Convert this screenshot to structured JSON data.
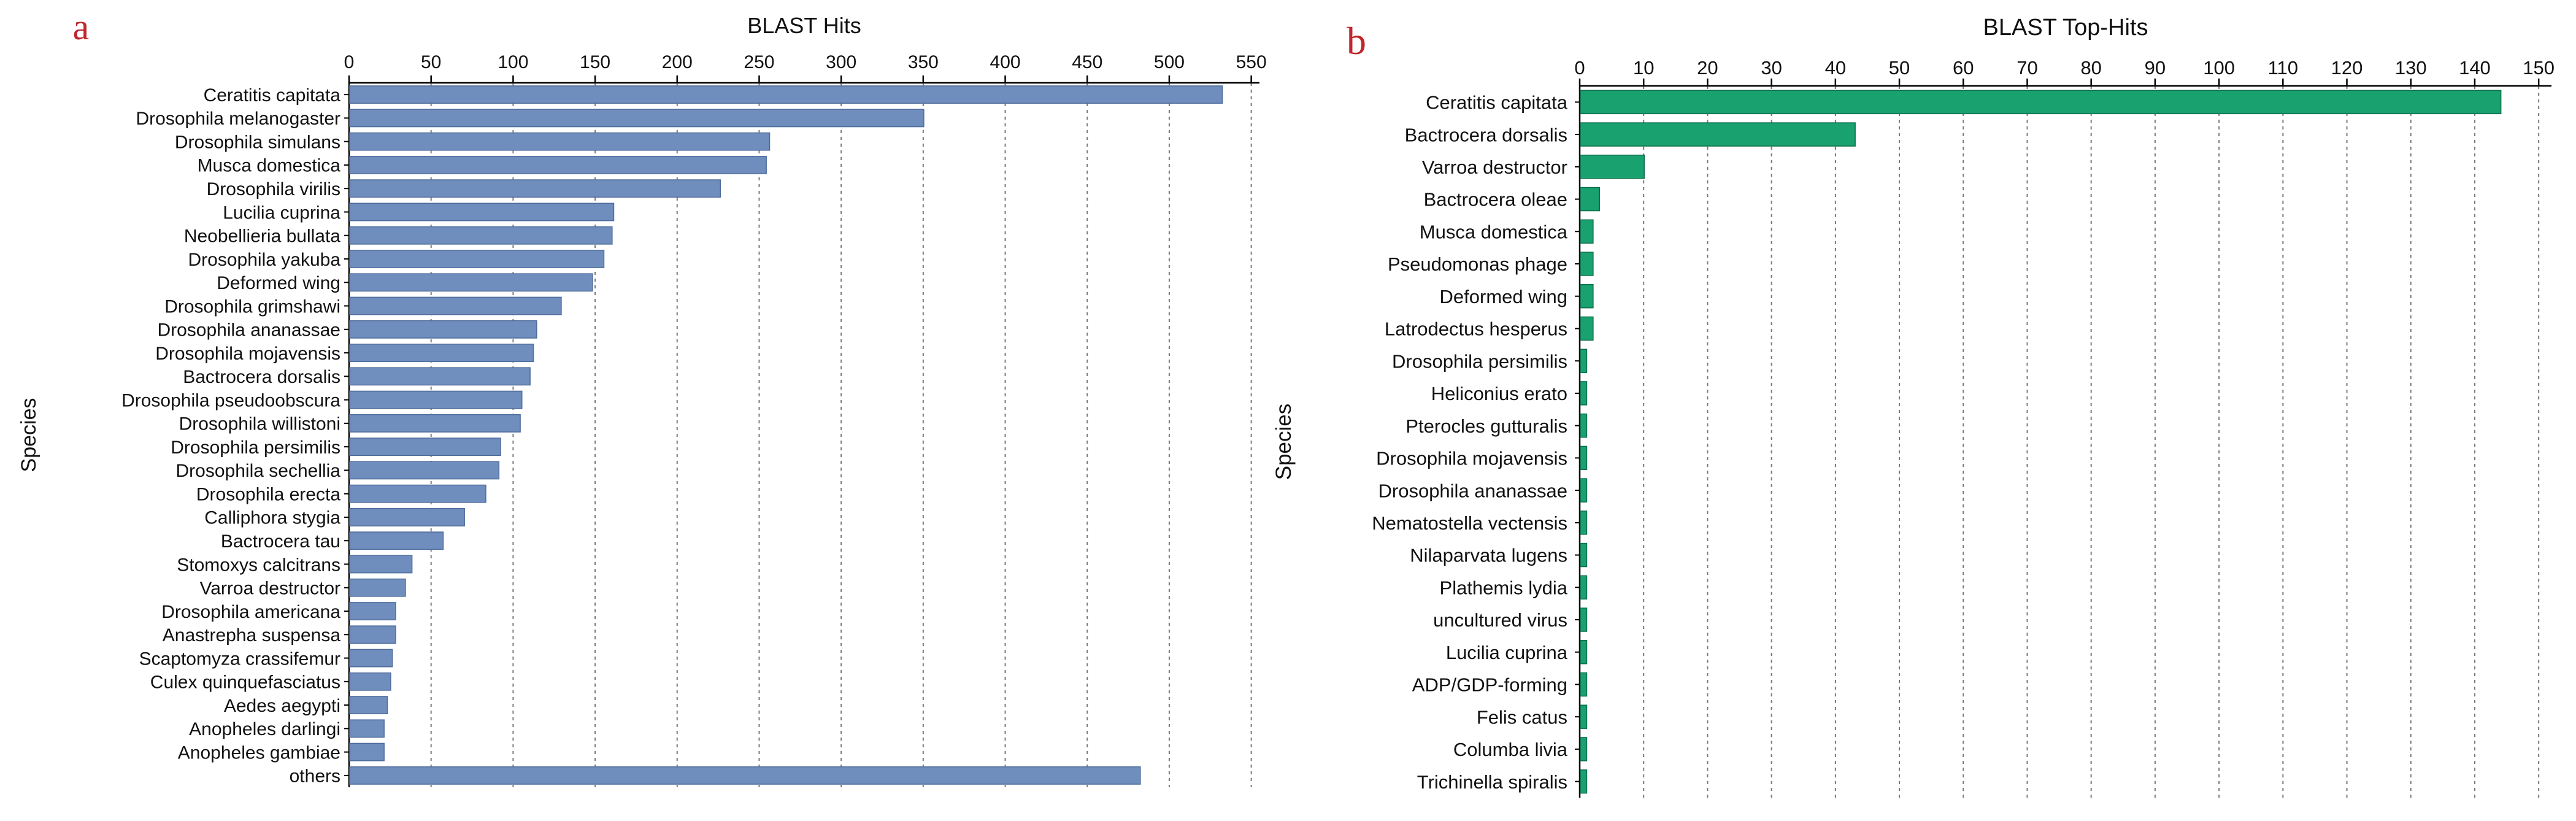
{
  "colors": {
    "panel_letter": "#c0262d",
    "bar_a": "#6f8dbd",
    "bar_a_edge": "#4f6d9c",
    "bar_b": "#19a170",
    "bar_b_edge": "#0d6f4b",
    "grid": "#7a7a7a",
    "axis": "#000000",
    "text": "#111111"
  },
  "chart_data": [
    {
      "type": "bar",
      "orientation": "horizontal",
      "panel_label": "a",
      "title": "BLAST Hits",
      "xlabel": "",
      "ylabel": "Species",
      "xlim": [
        0,
        555
      ],
      "xticks": [
        0,
        50,
        100,
        150,
        200,
        250,
        300,
        350,
        400,
        450,
        500,
        550
      ],
      "axis_position": "top",
      "grid": "vertical dashed",
      "categories": [
        "Ceratitis capitata",
        "Drosophila melanogaster",
        "Drosophila simulans",
        "Musca domestica",
        "Drosophila virilis",
        "Lucilia cuprina",
        "Neobellieria bullata",
        "Drosophila yakuba",
        "Deformed wing",
        "Drosophila grimshawi",
        "Drosophila ananassae",
        "Drosophila mojavensis",
        "Bactrocera dorsalis",
        "Drosophila pseudoobscura",
        "Drosophila willistoni",
        "Drosophila persimilis",
        "Drosophila sechellia",
        "Drosophila erecta",
        "Calliphora stygia",
        "Bactrocera tau",
        "Stomoxys calcitrans",
        "Varroa destructor",
        "Drosophila americana",
        "Anastrepha suspensa",
        "Scaptomyza crassifemur",
        "Culex quinquefasciatus",
        "Aedes aegypti",
        "Anopheles darlingi",
        "Anopheles gambiae",
        "others"
      ],
      "values": [
        532,
        350,
        256,
        254,
        226,
        161,
        160,
        155,
        148,
        129,
        114,
        112,
        110,
        105,
        104,
        92,
        91,
        83,
        70,
        57,
        38,
        34,
        28,
        28,
        26,
        25,
        23,
        21,
        21,
        482
      ]
    },
    {
      "type": "bar",
      "orientation": "horizontal",
      "panel_label": "b",
      "title": "BLAST Top-Hits",
      "xlabel": "",
      "ylabel": "Species",
      "xlim": [
        0,
        152
      ],
      "xticks": [
        0,
        10,
        20,
        30,
        40,
        50,
        60,
        70,
        80,
        90,
        100,
        110,
        120,
        130,
        140,
        150
      ],
      "axis_position": "top",
      "grid": "vertical dashed",
      "categories": [
        "Ceratitis capitata",
        "Bactrocera dorsalis",
        "Varroa destructor",
        "Bactrocera oleae",
        "Musca domestica",
        "Pseudomonas phage",
        "Deformed wing",
        "Latrodectus hesperus",
        "Drosophila persimilis",
        "Heliconius erato",
        "Pterocles gutturalis",
        "Drosophila mojavensis",
        "Drosophila ananassae",
        "Nematostella vectensis",
        "Nilaparvata lugens",
        "Plathemis lydia",
        "uncultured virus",
        "Lucilia cuprina",
        "ADP/GDP-forming",
        "Felis catus",
        "Columba livia",
        "Trichinella spiralis"
      ],
      "values": [
        144,
        43,
        10,
        3,
        2,
        2,
        2,
        2,
        1,
        1,
        1,
        1,
        1,
        1,
        1,
        1,
        1,
        1,
        1,
        1,
        1,
        1
      ]
    }
  ]
}
